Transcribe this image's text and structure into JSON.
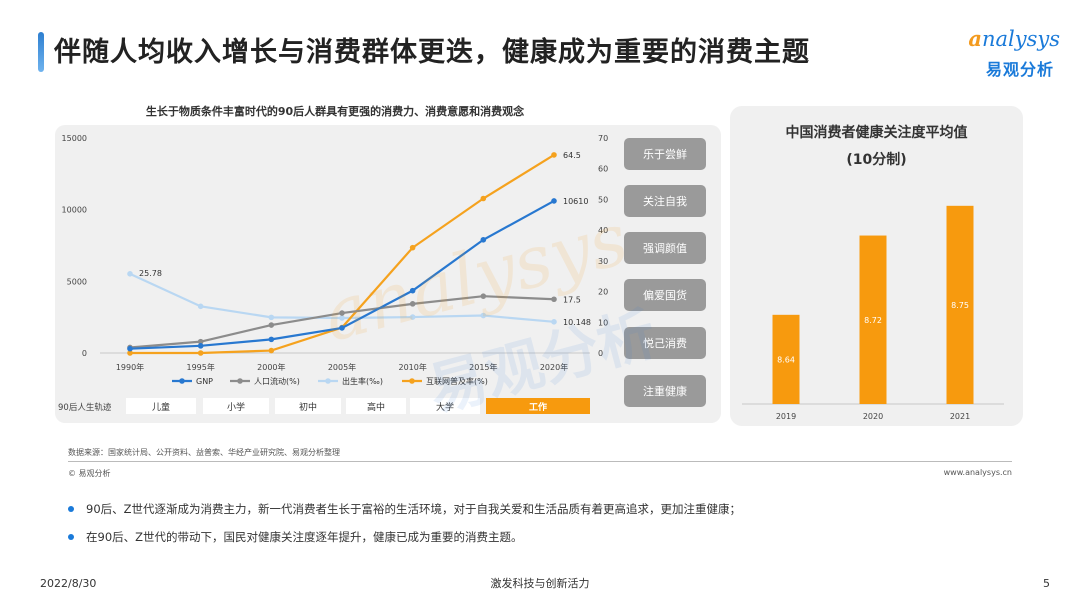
{
  "header": {
    "title": "伴随人均收入增长与消费群体更迭，健康成为重要的消费主题",
    "logo_en_prefix": "a",
    "logo_en_rest": "nalysys",
    "logo_cn": "易观分析"
  },
  "watermark": {
    "en": "analysys",
    "cn": "易观分析"
  },
  "chart_data": [
    {
      "type": "line",
      "title": "生长于物质条件丰富时代的90后人群具有更强的消费力、消费意愿和消费观念",
      "x": [
        "1990年",
        "1995年",
        "2000年",
        "2005年",
        "2010年",
        "2015年",
        "2020年"
      ],
      "y_left_ticks": [
        "15000",
        "10000",
        "5000",
        "0"
      ],
      "y_right_ticks": [
        "70",
        "60",
        "50",
        "40",
        "30",
        "20",
        "10",
        "0"
      ],
      "ylim_left": [
        0,
        15000
      ],
      "ylim_right": [
        0,
        70
      ],
      "legend_position": "bottom",
      "series": [
        {
          "name": "GNP",
          "axis": "left",
          "color": "#2878d0",
          "marker": true,
          "values": [
            300,
            500,
            950,
            1750,
            4350,
            7900,
            10610
          ],
          "end_label": "10610"
        },
        {
          "name": "人口流动(%)",
          "axis": "right",
          "color": "#8c8c8c",
          "marker": true,
          "values": [
            1.8,
            3.7,
            9.1,
            13,
            16,
            18.5,
            17.5
          ],
          "end_label": "17.5"
        },
        {
          "name": "出生率(‰)",
          "axis": "right",
          "color": "#b9d7f2",
          "marker": true,
          "values": [
            25.78,
            15.2,
            11.6,
            11.4,
            11.7,
            12.2,
            10.148
          ],
          "start_label": "25.78",
          "end_label": "10.148"
        },
        {
          "name": "互联网普及率(%)",
          "axis": "right",
          "color": "#f5a21e",
          "marker": true,
          "values": [
            0,
            0,
            0.8,
            8.3,
            34.3,
            50.3,
            64.5
          ],
          "end_label": "64.5"
        }
      ],
      "timeline": {
        "label": "90后人生轨迹",
        "stages": [
          "儿童",
          "小学",
          "初中",
          "高中",
          "大学",
          "工作"
        ],
        "active_index": 5
      }
    },
    {
      "type": "bar",
      "title": "中国消费者健康关注度平均值",
      "subtitle": "(10分制)",
      "categories": [
        "2019",
        "2020",
        "2021"
      ],
      "values": [
        8.64,
        8.72,
        8.75
      ],
      "ylim": [
        8.55,
        8.77
      ],
      "color": "#f79a0e"
    }
  ],
  "tags": [
    "乐于尝鲜",
    "关注自我",
    "强调颜值",
    "偏爱国货",
    "悦己消费",
    "注重健康"
  ],
  "source": "数据来源：国家统计局、公开资料、益普索、华经产业研究院、易观分析整理",
  "copyright": "© 易观分析",
  "website": "www.analysys.cn",
  "bullets": [
    "90后、Z世代逐渐成为消费主力，新一代消费者生长于富裕的生活环境，对于自我关爱和生活品质有着更高追求，更加注重健康；",
    "在90后、Z世代的带动下，国民对健康关注度逐年提升，健康已成为重要的消费主题。"
  ],
  "footer": {
    "date": "2022/8/30",
    "center": "激发科技与创新活力",
    "page": "5"
  }
}
